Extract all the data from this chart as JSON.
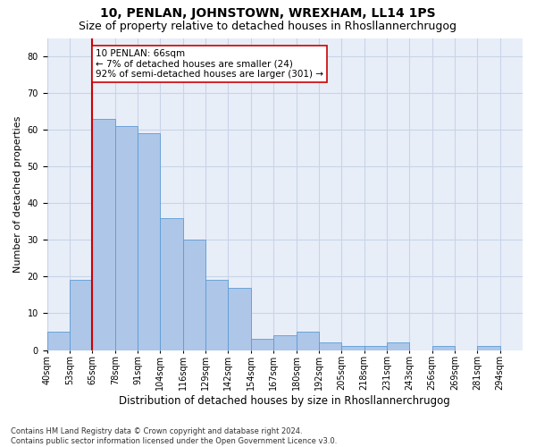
{
  "title": "10, PENLAN, JOHNSTOWN, WREXHAM, LL14 1PS",
  "subtitle": "Size of property relative to detached houses in Rhosllannerchrugog",
  "xlabel": "Distribution of detached houses by size in Rhosllannerchrugog",
  "ylabel": "Number of detached properties",
  "bar_values": [
    5,
    19,
    63,
    61,
    59,
    36,
    30,
    19,
    17,
    3,
    4,
    5,
    2,
    1,
    1,
    2,
    0,
    1,
    0,
    1
  ],
  "all_labels": [
    "40sqm",
    "53sqm",
    "65sqm",
    "78sqm",
    "91sqm",
    "104sqm",
    "116sqm",
    "129sqm",
    "142sqm",
    "154sqm",
    "167sqm",
    "180sqm",
    "192sqm",
    "205sqm",
    "218sqm",
    "231sqm",
    "243sqm",
    "256sqm",
    "269sqm",
    "281sqm",
    "294sqm"
  ],
  "bar_color": "#aec6e8",
  "bar_edge_color": "#5b9bd5",
  "red_line_bin": 2,
  "annotation_text": "10 PENLAN: 66sqm\n← 7% of detached houses are smaller (24)\n92% of semi-detached houses are larger (301) →",
  "annotation_box_color": "white",
  "annotation_box_edge_color": "#cc0000",
  "red_line_color": "#cc0000",
  "ylim": [
    0,
    85
  ],
  "yticks": [
    0,
    10,
    20,
    30,
    40,
    50,
    60,
    70,
    80
  ],
  "grid_color": "#c8d4e8",
  "background_color": "#e8eef8",
  "footer": "Contains HM Land Registry data © Crown copyright and database right 2024.\nContains public sector information licensed under the Open Government Licence v3.0.",
  "title_fontsize": 10,
  "subtitle_fontsize": 9,
  "ylabel_fontsize": 8,
  "xlabel_fontsize": 8.5,
  "tick_fontsize": 7,
  "annotation_fontsize": 7.5
}
